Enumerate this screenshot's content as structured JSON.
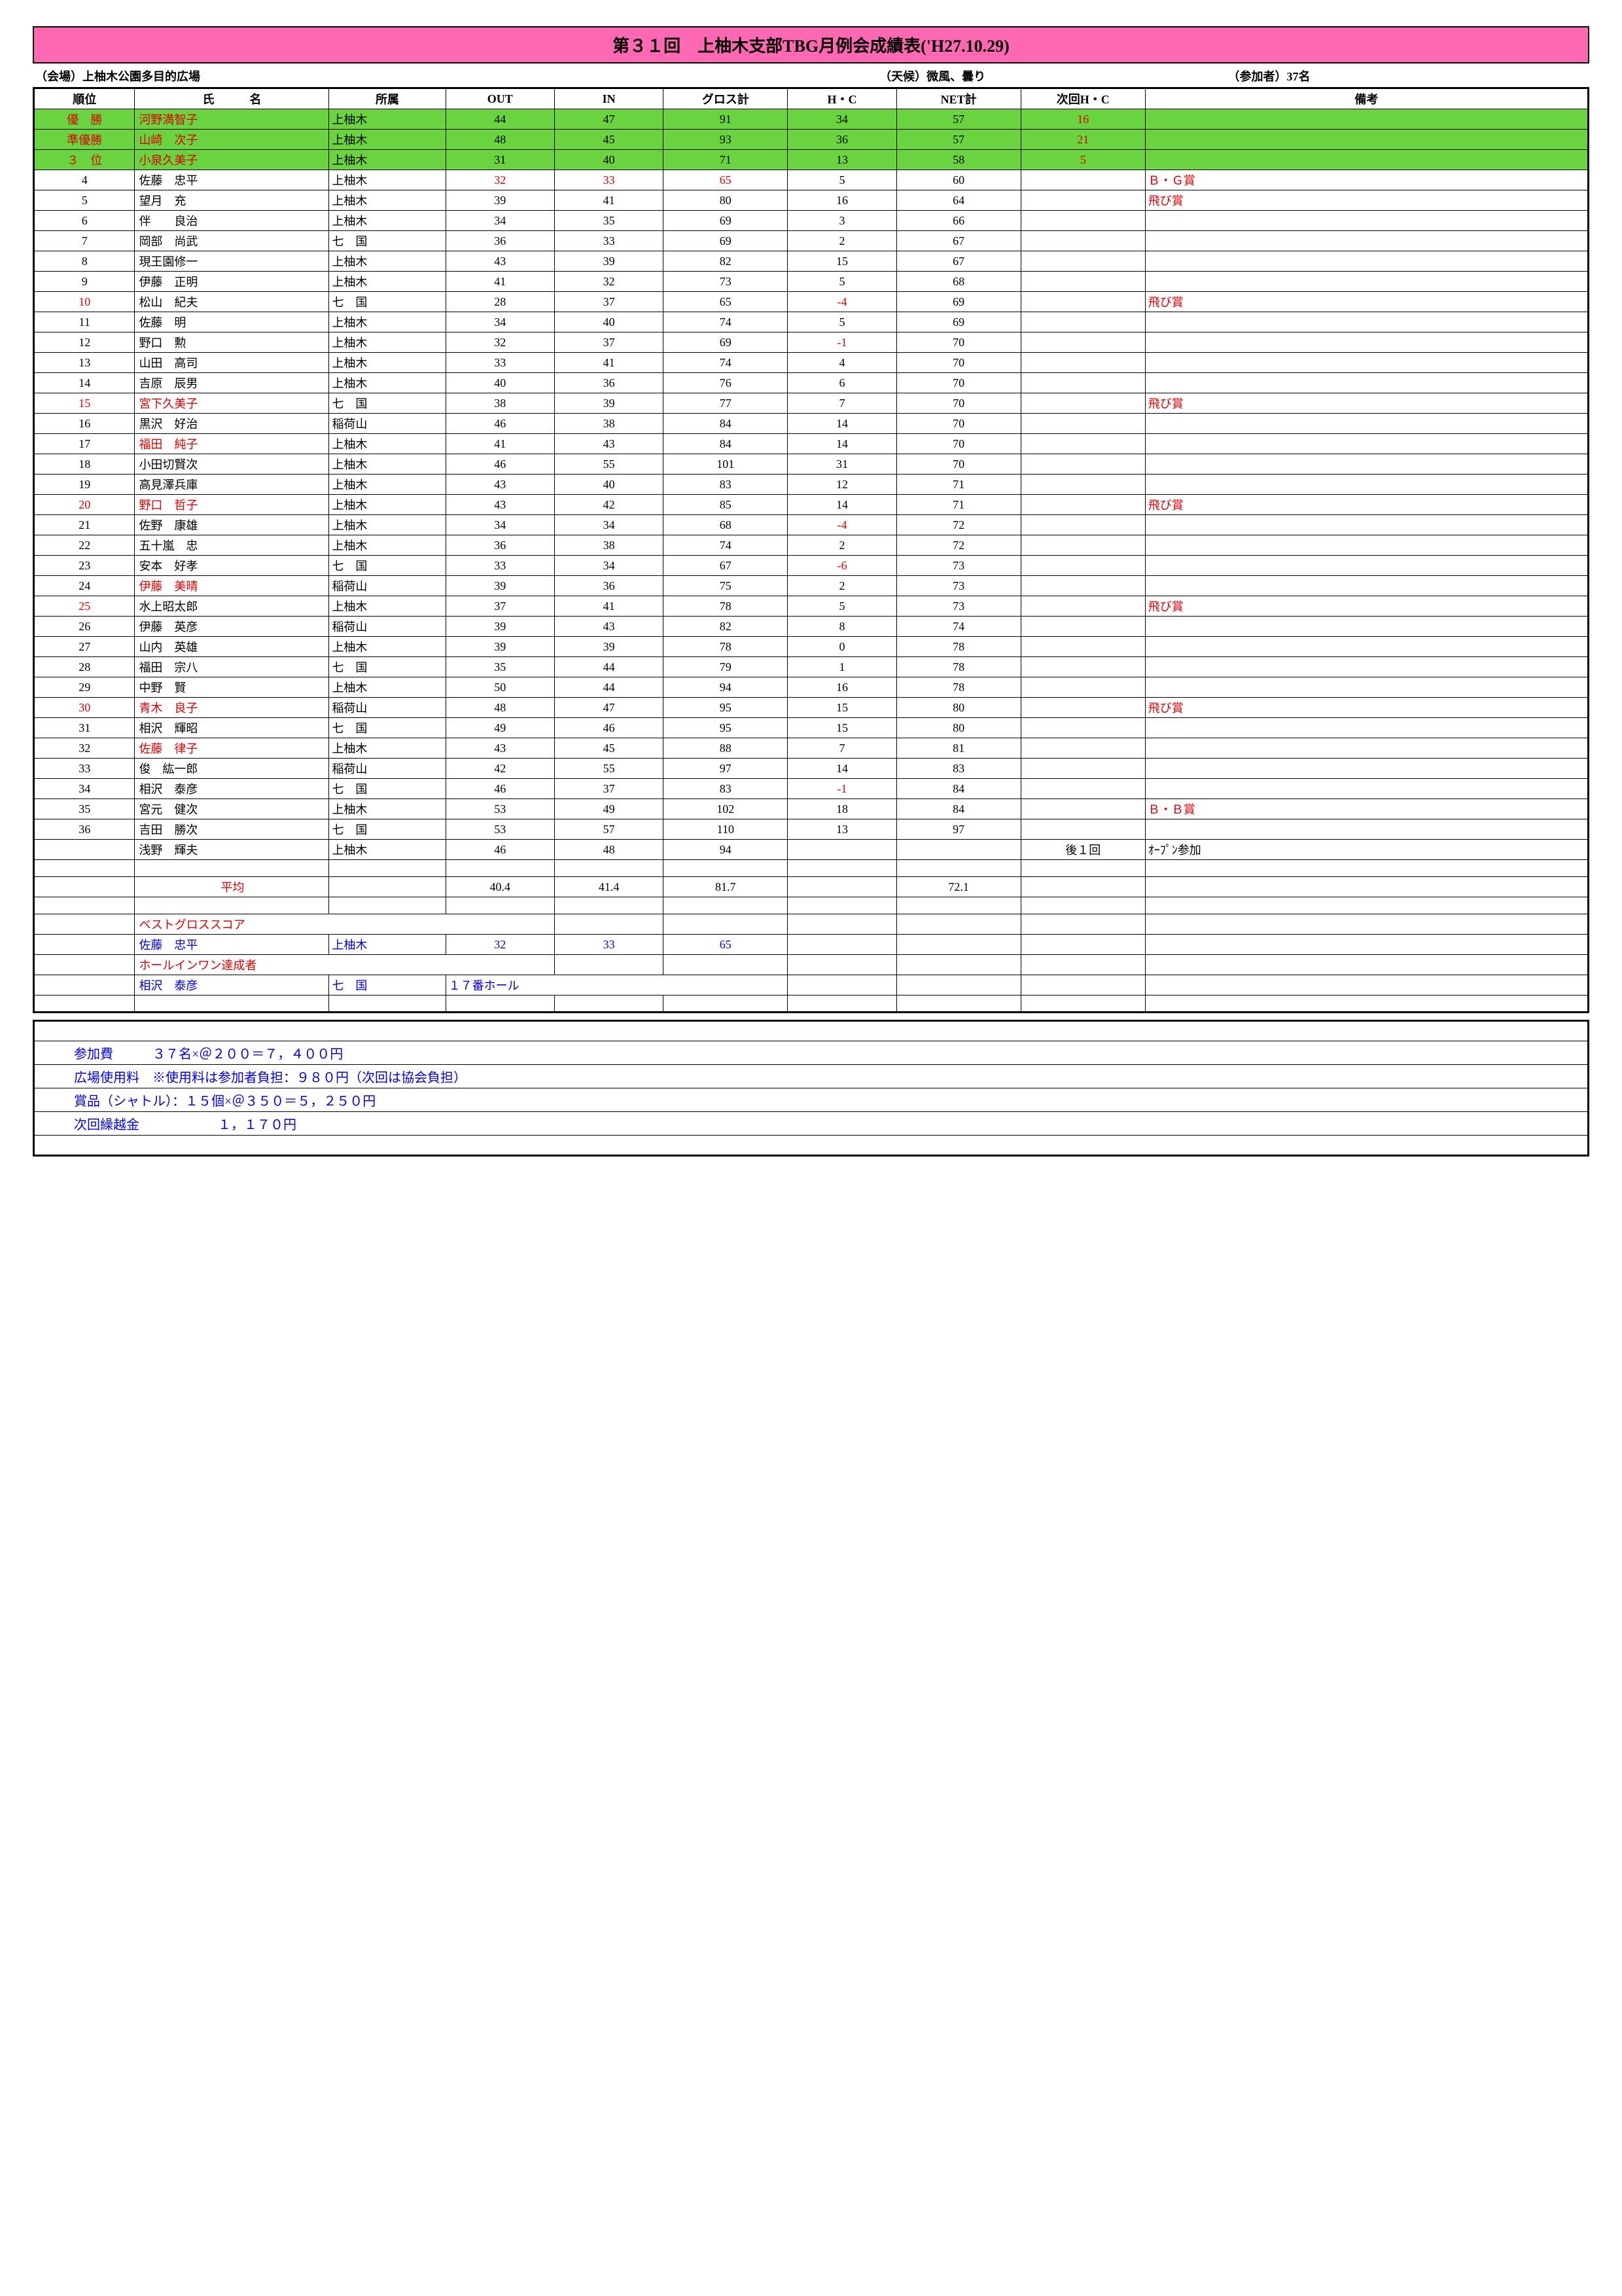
{
  "title": "第３１回　上柚木支部TBG月例会成績表('H27.10.29)",
  "info": {
    "venue": "（会場）上柚木公園多目的広場",
    "weather": "（天候）微風、曇り",
    "participants": "（参加者）37名"
  },
  "columns": [
    "順位",
    "氏　　　名",
    "所属",
    "OUT",
    "IN",
    "グロス計",
    "H・C",
    "NET計",
    "次回H・C",
    "備考"
  ],
  "rows": [
    {
      "rank": "優　勝",
      "name": "河野満智子",
      "affil": "上柚木",
      "out": "44",
      "in": "47",
      "gross": "91",
      "hc": "34",
      "net": "57",
      "nexthc": "16",
      "note": "",
      "green": true,
      "rank_red": true,
      "name_red": true,
      "nexthc_red": true
    },
    {
      "rank": "準優勝",
      "name": "山崎　次子",
      "affil": "上柚木",
      "out": "48",
      "in": "45",
      "gross": "93",
      "hc": "36",
      "net": "57",
      "nexthc": "21",
      "note": "",
      "green": true,
      "rank_red": true,
      "name_red": true,
      "nexthc_red": true
    },
    {
      "rank": "３　位",
      "name": "小泉久美子",
      "affil": "上柚木",
      "out": "31",
      "in": "40",
      "gross": "71",
      "hc": "13",
      "net": "58",
      "nexthc": "5",
      "note": "",
      "green": true,
      "rank_red": true,
      "name_red": true,
      "nexthc_red": true
    },
    {
      "rank": "4",
      "name": "佐藤　忠平",
      "affil": "上柚木",
      "out": "32",
      "in": "33",
      "gross": "65",
      "hc": "5",
      "net": "60",
      "nexthc": "",
      "note": "Ｂ・Ｇ賞",
      "scores_red": true,
      "note_red": true
    },
    {
      "rank": "5",
      "name": "望月　充",
      "affil": "上柚木",
      "out": "39",
      "in": "41",
      "gross": "80",
      "hc": "16",
      "net": "64",
      "nexthc": "",
      "note": "飛び賞",
      "note_red": true
    },
    {
      "rank": "6",
      "name": "伴　　良治",
      "affil": "上柚木",
      "out": "34",
      "in": "35",
      "gross": "69",
      "hc": "3",
      "net": "66",
      "nexthc": "",
      "note": ""
    },
    {
      "rank": "7",
      "name": "岡部　尚武",
      "affil": "七　国",
      "out": "36",
      "in": "33",
      "gross": "69",
      "hc": "2",
      "net": "67",
      "nexthc": "",
      "note": ""
    },
    {
      "rank": "8",
      "name": "現王園修一",
      "affil": "上柚木",
      "out": "43",
      "in": "39",
      "gross": "82",
      "hc": "15",
      "net": "67",
      "nexthc": "",
      "note": ""
    },
    {
      "rank": "9",
      "name": "伊藤　正明",
      "affil": "上柚木",
      "out": "41",
      "in": "32",
      "gross": "73",
      "hc": "5",
      "net": "68",
      "nexthc": "",
      "note": ""
    },
    {
      "rank": "10",
      "name": "松山　紀夫",
      "affil": "七　国",
      "out": "28",
      "in": "37",
      "gross": "65",
      "hc": "-4",
      "net": "69",
      "nexthc": "",
      "note": "飛び賞",
      "rank_red": true,
      "hc_red": true,
      "note_red": true
    },
    {
      "rank": "11",
      "name": "佐藤　明",
      "affil": "上柚木",
      "out": "34",
      "in": "40",
      "gross": "74",
      "hc": "5",
      "net": "69",
      "nexthc": "",
      "note": ""
    },
    {
      "rank": "12",
      "name": "野口　勲",
      "affil": "上柚木",
      "out": "32",
      "in": "37",
      "gross": "69",
      "hc": "-1",
      "net": "70",
      "nexthc": "",
      "note": "",
      "hc_red": true
    },
    {
      "rank": "13",
      "name": "山田　高司",
      "affil": "上柚木",
      "out": "33",
      "in": "41",
      "gross": "74",
      "hc": "4",
      "net": "70",
      "nexthc": "",
      "note": ""
    },
    {
      "rank": "14",
      "name": "吉原　辰男",
      "affil": "上柚木",
      "out": "40",
      "in": "36",
      "gross": "76",
      "hc": "6",
      "net": "70",
      "nexthc": "",
      "note": ""
    },
    {
      "rank": "15",
      "name": "宮下久美子",
      "affil": "七　国",
      "out": "38",
      "in": "39",
      "gross": "77",
      "hc": "7",
      "net": "70",
      "nexthc": "",
      "note": "飛び賞",
      "rank_red": true,
      "name_red": true,
      "note_red": true
    },
    {
      "rank": "16",
      "name": "黒沢　好治",
      "affil": "稲荷山",
      "out": "46",
      "in": "38",
      "gross": "84",
      "hc": "14",
      "net": "70",
      "nexthc": "",
      "note": ""
    },
    {
      "rank": "17",
      "name": "福田　純子",
      "affil": "上柚木",
      "out": "41",
      "in": "43",
      "gross": "84",
      "hc": "14",
      "net": "70",
      "nexthc": "",
      "note": "",
      "name_red": true
    },
    {
      "rank": "18",
      "name": "小田切賢次",
      "affil": "上柚木",
      "out": "46",
      "in": "55",
      "gross": "101",
      "hc": "31",
      "net": "70",
      "nexthc": "",
      "note": ""
    },
    {
      "rank": "19",
      "name": "高見澤兵庫",
      "affil": "上柚木",
      "out": "43",
      "in": "40",
      "gross": "83",
      "hc": "12",
      "net": "71",
      "nexthc": "",
      "note": ""
    },
    {
      "rank": "20",
      "name": "野口　哲子",
      "affil": "上柚木",
      "out": "43",
      "in": "42",
      "gross": "85",
      "hc": "14",
      "net": "71",
      "nexthc": "",
      "note": "飛び賞",
      "rank_red": true,
      "name_red": true,
      "note_red": true
    },
    {
      "rank": "21",
      "name": "佐野　康雄",
      "affil": "上柚木",
      "out": "34",
      "in": "34",
      "gross": "68",
      "hc": "-4",
      "net": "72",
      "nexthc": "",
      "note": "",
      "hc_red": true
    },
    {
      "rank": "22",
      "name": "五十嵐　忠",
      "affil": "上柚木",
      "out": "36",
      "in": "38",
      "gross": "74",
      "hc": "2",
      "net": "72",
      "nexthc": "",
      "note": ""
    },
    {
      "rank": "23",
      "name": "安本　好孝",
      "affil": "七　国",
      "out": "33",
      "in": "34",
      "gross": "67",
      "hc": "-6",
      "net": "73",
      "nexthc": "",
      "note": "",
      "hc_red": true
    },
    {
      "rank": "24",
      "name": "伊藤　美晴",
      "affil": "稲荷山",
      "out": "39",
      "in": "36",
      "gross": "75",
      "hc": "2",
      "net": "73",
      "nexthc": "",
      "note": "",
      "name_red": true
    },
    {
      "rank": "25",
      "name": "水上昭太郎",
      "affil": "上柚木",
      "out": "37",
      "in": "41",
      "gross": "78",
      "hc": "5",
      "net": "73",
      "nexthc": "",
      "note": "飛び賞",
      "rank_red": true,
      "note_red": true
    },
    {
      "rank": "26",
      "name": "伊藤　英彦",
      "affil": "稲荷山",
      "out": "39",
      "in": "43",
      "gross": "82",
      "hc": "8",
      "net": "74",
      "nexthc": "",
      "note": ""
    },
    {
      "rank": "27",
      "name": "山内　英雄",
      "affil": "上柚木",
      "out": "39",
      "in": "39",
      "gross": "78",
      "hc": "0",
      "net": "78",
      "nexthc": "",
      "note": ""
    },
    {
      "rank": "28",
      "name": "福田　宗八",
      "affil": "七　国",
      "out": "35",
      "in": "44",
      "gross": "79",
      "hc": "1",
      "net": "78",
      "nexthc": "",
      "note": ""
    },
    {
      "rank": "29",
      "name": "中野　賢",
      "affil": "上柚木",
      "out": "50",
      "in": "44",
      "gross": "94",
      "hc": "16",
      "net": "78",
      "nexthc": "",
      "note": ""
    },
    {
      "rank": "30",
      "name": "青木　良子",
      "affil": "稲荷山",
      "out": "48",
      "in": "47",
      "gross": "95",
      "hc": "15",
      "net": "80",
      "nexthc": "",
      "note": "飛び賞",
      "rank_red": true,
      "name_red": true,
      "note_red": true
    },
    {
      "rank": "31",
      "name": "相沢　輝昭",
      "affil": "七　国",
      "out": "49",
      "in": "46",
      "gross": "95",
      "hc": "15",
      "net": "80",
      "nexthc": "",
      "note": ""
    },
    {
      "rank": "32",
      "name": "佐藤　律子",
      "affil": "上柚木",
      "out": "43",
      "in": "45",
      "gross": "88",
      "hc": "7",
      "net": "81",
      "nexthc": "",
      "note": "",
      "name_red": true
    },
    {
      "rank": "33",
      "name": "俊　紘一郎",
      "affil": "稲荷山",
      "out": "42",
      "in": "55",
      "gross": "97",
      "hc": "14",
      "net": "83",
      "nexthc": "",
      "note": ""
    },
    {
      "rank": "34",
      "name": "相沢　泰彦",
      "affil": "七　国",
      "out": "46",
      "in": "37",
      "gross": "83",
      "hc": "-1",
      "net": "84",
      "nexthc": "",
      "note": "",
      "hc_red": true
    },
    {
      "rank": "35",
      "name": "宮元　健次",
      "affil": "上柚木",
      "out": "53",
      "in": "49",
      "gross": "102",
      "hc": "18",
      "net": "84",
      "nexthc": "",
      "note": "Ｂ・Ｂ賞",
      "note_red": true
    },
    {
      "rank": "36",
      "name": "吉田　勝次",
      "affil": "七　国",
      "out": "53",
      "in": "57",
      "gross": "110",
      "hc": "13",
      "net": "97",
      "nexthc": "",
      "note": ""
    },
    {
      "rank": "",
      "name": "浅野　輝夫",
      "affil": "上柚木",
      "out": "46",
      "in": "48",
      "gross": "94",
      "hc": "",
      "net": "",
      "nexthc": "後１回",
      "note": "ｵｰﾌﾟﾝ参加"
    }
  ],
  "average": {
    "label": "平均",
    "out": "40.4",
    "in": "41.4",
    "gross": "81.7",
    "net": "72.1"
  },
  "best_gross_label": "ベストグロススコア",
  "best_gross": {
    "name": "佐藤　忠平",
    "affil": "上柚木",
    "out": "32",
    "in": "33",
    "gross": "65"
  },
  "hio_label": "ホールインワン達成者",
  "hio": {
    "name": "相沢　泰彦",
    "affil": "七　国",
    "hole": "１７番ホール"
  },
  "footer": [
    "参加費　　　３７名×＠２００＝７，４００円",
    "広場使用料　※使用料は参加者負担：９８０円（次回は協会負担）",
    "賞品（シャトル）：１５個×＠３５０＝５，２５０円",
    "次回繰越金　　　　　　１，１７０円"
  ],
  "colors": {
    "title_bg": "#ff69b4",
    "green": "#6ad340",
    "red": "#d00000",
    "blue": "#0000dd"
  }
}
